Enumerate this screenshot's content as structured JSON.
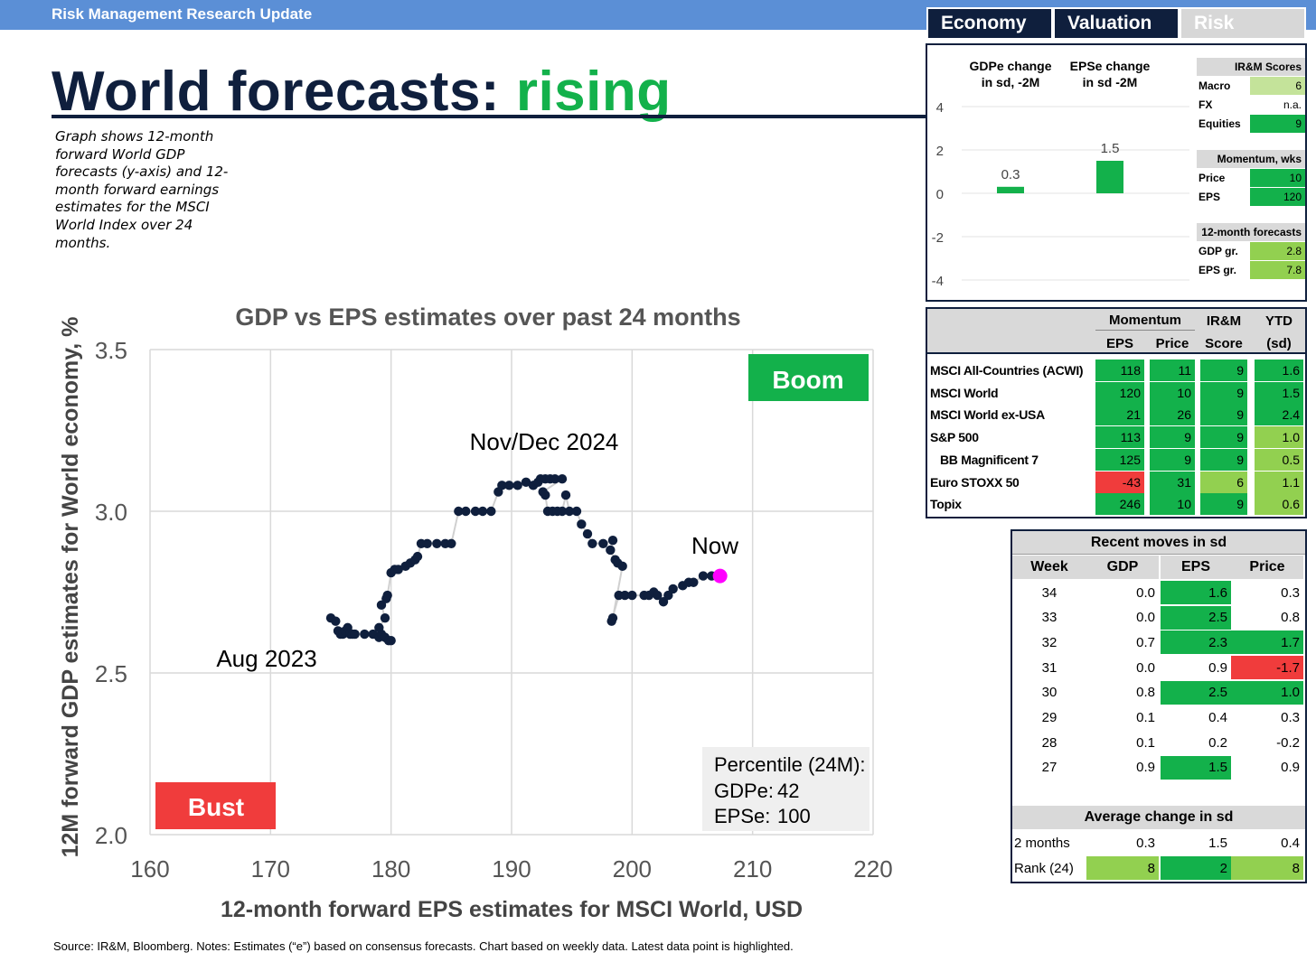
{
  "header": {
    "bar_text": "Risk Management Research Update",
    "tabs": [
      {
        "label": "Economy"
      },
      {
        "label": "Valuation"
      },
      {
        "label": "Risk"
      }
    ]
  },
  "title": {
    "main": "World forecasts:",
    "accent": "rising"
  },
  "description": "Graph shows 12-month forward World GDP forecasts (y-axis) and 12-month forward earnings estimates for the MSCI World Index over 24 months.",
  "chart_data": {
    "type": "scatter",
    "title": "GDP vs EPS estimates over past 24 months",
    "xlabel": "12-month forward EPS estimates for MSCI World, USD",
    "ylabel": "12M forward GDP estimates for World economy, %",
    "xlim": [
      160,
      220
    ],
    "ylim": [
      2.0,
      3.5
    ],
    "xticks": [
      160,
      170,
      180,
      190,
      200,
      210,
      220
    ],
    "yticks": [
      "2.0",
      "2.5",
      "3.0",
      "3.5"
    ],
    "grid": true,
    "points": [
      [
        175.0,
        2.67
      ],
      [
        175.4,
        2.66
      ],
      [
        175.6,
        2.63
      ],
      [
        175.8,
        2.62
      ],
      [
        176.0,
        2.62
      ],
      [
        176.2,
        2.63
      ],
      [
        176.4,
        2.64
      ],
      [
        176.6,
        2.62
      ],
      [
        176.8,
        2.62
      ],
      [
        177.0,
        2.62
      ],
      [
        177.8,
        2.62
      ],
      [
        178.5,
        2.62
      ],
      [
        179.0,
        2.61
      ],
      [
        179.2,
        2.62
      ],
      [
        179.5,
        2.61
      ],
      [
        179.8,
        2.6
      ],
      [
        180.0,
        2.6
      ],
      [
        179.0,
        2.64
      ],
      [
        179.5,
        2.67
      ],
      [
        179.2,
        2.71
      ],
      [
        179.6,
        2.73
      ],
      [
        179.7,
        2.74
      ],
      [
        180.0,
        2.81
      ],
      [
        180.3,
        2.82
      ],
      [
        180.6,
        2.82
      ],
      [
        181.2,
        2.83
      ],
      [
        181.6,
        2.84
      ],
      [
        182.0,
        2.85
      ],
      [
        182.2,
        2.86
      ],
      [
        182.5,
        2.9
      ],
      [
        183.0,
        2.9
      ],
      [
        183.8,
        2.9
      ],
      [
        184.5,
        2.9
      ],
      [
        185.0,
        2.9
      ],
      [
        185.6,
        3.0
      ],
      [
        186.2,
        3.0
      ],
      [
        187.0,
        3.0
      ],
      [
        187.6,
        3.0
      ],
      [
        188.3,
        3.0
      ],
      [
        188.9,
        3.06
      ],
      [
        189.2,
        3.08
      ],
      [
        189.8,
        3.08
      ],
      [
        190.5,
        3.08
      ],
      [
        191.2,
        3.09
      ],
      [
        191.8,
        3.08
      ],
      [
        192.2,
        3.09
      ],
      [
        192.4,
        3.1
      ],
      [
        192.8,
        3.1
      ],
      [
        193.2,
        3.1
      ],
      [
        193.6,
        3.1
      ],
      [
        194.2,
        3.1
      ],
      [
        192.6,
        3.06
      ],
      [
        192.8,
        3.05
      ],
      [
        193.0,
        3.0
      ],
      [
        193.4,
        3.0
      ],
      [
        193.8,
        3.0
      ],
      [
        194.2,
        3.0
      ],
      [
        194.5,
        3.05
      ],
      [
        194.8,
        3.0
      ],
      [
        195.4,
        3.0
      ],
      [
        195.8,
        2.96
      ],
      [
        196.3,
        2.93
      ],
      [
        196.7,
        2.9
      ],
      [
        197.6,
        2.9
      ],
      [
        198.4,
        2.91
      ],
      [
        198.2,
        2.88
      ],
      [
        198.6,
        2.85
      ],
      [
        198.8,
        2.84
      ],
      [
        199.2,
        2.83
      ],
      [
        198.4,
        2.67
      ],
      [
        198.3,
        2.66
      ],
      [
        198.9,
        2.74
      ],
      [
        199.4,
        2.74
      ],
      [
        200.0,
        2.74
      ],
      [
        201.0,
        2.74
      ],
      [
        201.4,
        2.74
      ],
      [
        201.8,
        2.75
      ],
      [
        202.1,
        2.74
      ],
      [
        202.6,
        2.72
      ],
      [
        203.0,
        2.74
      ],
      [
        203.4,
        2.76
      ],
      [
        204.2,
        2.77
      ],
      [
        204.7,
        2.78
      ],
      [
        205.1,
        2.78
      ],
      [
        205.9,
        2.8
      ],
      [
        206.6,
        2.8
      ]
    ],
    "now": [
      207.3,
      2.8
    ],
    "annotations": {
      "aug": "Aug 2023",
      "nov": "Nov/Dec 2024",
      "now": "Now",
      "boom": "Boom",
      "bust": "Bust"
    },
    "percentile": {
      "title": "Percentile (24M):",
      "gdp_label": "GDPe:",
      "gdp_value": "42",
      "eps_label": "EPSe:",
      "eps_value": "100"
    }
  },
  "sd_chart": {
    "headers": [
      "GDPe change\nin sd, -2M",
      "EPSe change\nin sd -2M"
    ],
    "values": [
      0.3,
      1.5
    ],
    "value_labels": [
      "0.3",
      "1.5"
    ],
    "yticks": [
      "4",
      "2",
      "0",
      "-2",
      "-4"
    ]
  },
  "scores": {
    "irm_title": "IR&M Scores",
    "irm": [
      {
        "label": "Macro",
        "value": "6",
        "color": "#c4e39a"
      },
      {
        "label": "FX",
        "value": "n.a.",
        "color": "#ffffff"
      },
      {
        "label": "Equities",
        "value": "9",
        "color": "#13b14b"
      }
    ],
    "mom_title": "Momentum, wks",
    "mom": [
      {
        "label": "Price",
        "value": "10",
        "color": "#13b14b"
      },
      {
        "label": "EPS",
        "value": "120",
        "color": "#13b14b"
      }
    ],
    "fc_title": "12-month forecasts",
    "fc": [
      {
        "label": "GDP gr.",
        "value": "2.8",
        "color": "#92d050"
      },
      {
        "label": "EPS gr.",
        "value": "7.8",
        "color": "#92d050"
      }
    ]
  },
  "momentum_table": {
    "group_headers": [
      "Momentum",
      "IR&M",
      "YTD"
    ],
    "col_headers": [
      "EPS",
      "Price",
      "Score",
      "(sd)"
    ],
    "rows": [
      {
        "name": "MSCI All-Countries (ACWI)",
        "eps": "118",
        "price": "11",
        "score": "9",
        "ytd": "1.6",
        "c": [
          "g",
          "g",
          "g",
          "g"
        ]
      },
      {
        "name": "MSCI World",
        "eps": "120",
        "price": "10",
        "score": "9",
        "ytd": "1.5",
        "c": [
          "g",
          "g",
          "g",
          "g"
        ]
      },
      {
        "name": "MSCI World ex-USA",
        "eps": "21",
        "price": "26",
        "score": "9",
        "ytd": "2.4",
        "c": [
          "g",
          "g",
          "g",
          "g"
        ]
      },
      {
        "name": "S&P 500",
        "eps": "113",
        "price": "9",
        "score": "9",
        "ytd": "1.0",
        "c": [
          "g",
          "g",
          "g",
          "lg"
        ]
      },
      {
        "name": "BB Magnificent 7",
        "eps": "125",
        "price": "9",
        "score": "9",
        "ytd": "0.5",
        "c": [
          "g",
          "g",
          "g",
          "lg"
        ]
      },
      {
        "name": "Euro STOXX 50",
        "eps": "-43",
        "price": "31",
        "score": "6",
        "ytd": "1.1",
        "c": [
          "r",
          "g",
          "lg",
          "lg"
        ]
      },
      {
        "name": "Topix",
        "eps": "246",
        "price": "10",
        "score": "9",
        "ytd": "0.6",
        "c": [
          "g",
          "g",
          "g",
          "lg"
        ]
      }
    ]
  },
  "recent_moves": {
    "title": "Recent moves in sd",
    "col_headers": [
      "Week",
      "GDP",
      "EPS",
      "Price"
    ],
    "rows": [
      {
        "week": "34",
        "gdp": "0.0",
        "eps": "1.6",
        "price": "0.3",
        "c": [
          "",
          "g",
          ""
        ]
      },
      {
        "week": "33",
        "gdp": "0.0",
        "eps": "2.5",
        "price": "0.8",
        "c": [
          "",
          "g",
          ""
        ]
      },
      {
        "week": "32",
        "gdp": "0.7",
        "eps": "2.3",
        "price": "1.7",
        "c": [
          "",
          "g",
          "g"
        ]
      },
      {
        "week": "31",
        "gdp": "0.0",
        "eps": "0.9",
        "price": "-1.7",
        "c": [
          "",
          "",
          "r"
        ]
      },
      {
        "week": "30",
        "gdp": "0.8",
        "eps": "2.5",
        "price": "1.0",
        "c": [
          "",
          "g",
          "g"
        ]
      },
      {
        "week": "29",
        "gdp": "0.1",
        "eps": "0.4",
        "price": "0.3",
        "c": [
          "",
          "",
          ""
        ]
      },
      {
        "week": "28",
        "gdp": "0.1",
        "eps": "0.2",
        "price": "-0.2",
        "c": [
          "",
          "",
          ""
        ]
      },
      {
        "week": "27",
        "gdp": "0.9",
        "eps": "1.5",
        "price": "0.9",
        "c": [
          "",
          "g",
          ""
        ]
      }
    ],
    "avg_title": "Average change in sd",
    "avg_rows": [
      {
        "label": "2 months",
        "gdp": "0.3",
        "eps": "1.5",
        "price": "0.4",
        "c": [
          "",
          "",
          ""
        ]
      },
      {
        "label": "Rank (24)",
        "gdp": "8",
        "eps": "2",
        "price": "8",
        "c": [
          "lg",
          "g",
          "lg"
        ]
      }
    ]
  },
  "source": "Source: IR&M, Bloomberg. Notes: Estimates (“e”) based on consensus forecasts. Chart based on weekly data. Latest data point is highlighted."
}
